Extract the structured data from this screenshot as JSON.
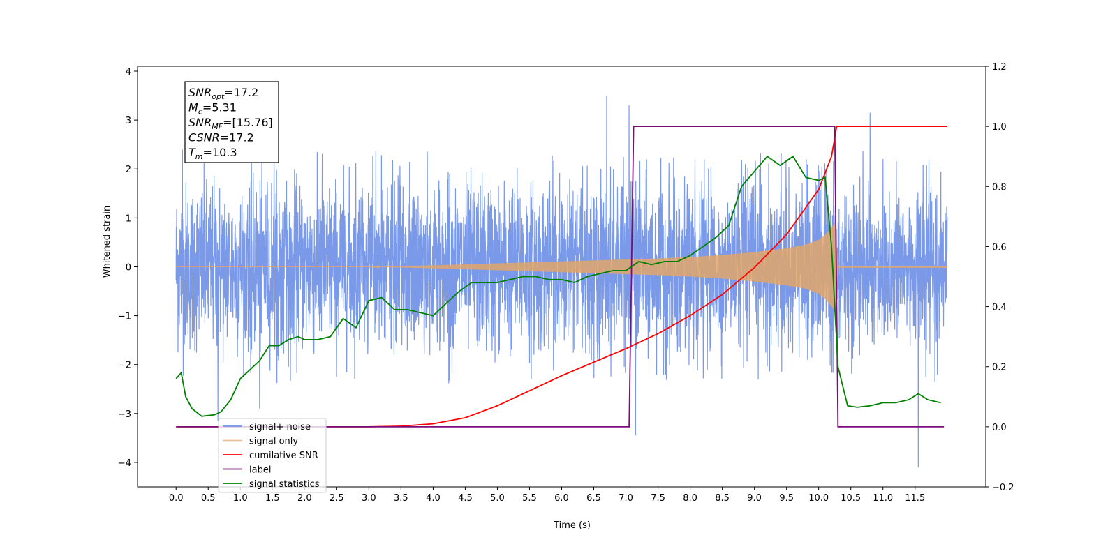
{
  "chart_data": {
    "type": "line",
    "title": "",
    "xlabel": "Time (s)",
    "ylabel": "Whitened strain",
    "ylabel_right": "",
    "xlim": [
      -0.6,
      12.6
    ],
    "ylim": [
      -4.5,
      4.1
    ],
    "ylim_right": [
      -0.2,
      1.2
    ],
    "x_ticks": [
      "0.0",
      "0.5",
      "1.0",
      "1.5",
      "2.0",
      "2.5",
      "3.0",
      "3.5",
      "4.0",
      "4.5",
      "5.0",
      "5.5",
      "6.0",
      "6.5",
      "7.0",
      "7.5",
      "8.0",
      "8.5",
      "9.0",
      "9.5",
      "10.0",
      "10.5",
      "11.0",
      "11.5"
    ],
    "y_ticks": [
      "−4",
      "−3",
      "−2",
      "−1",
      "0",
      "1",
      "2",
      "3",
      "4"
    ],
    "y_ticks_right": [
      "−0.2",
      "0.0",
      "0.2",
      "0.4",
      "0.6",
      "0.8",
      "1.0",
      "1.2"
    ],
    "grid": false,
    "legend_position": "lower-left",
    "info_box": {
      "lines": [
        {
          "sym": "SNR",
          "sub": "opt",
          "val": "=17.2"
        },
        {
          "sym": "M",
          "sub": "c",
          "val": "=5.31"
        },
        {
          "sym": "SNR",
          "sub": "MF",
          "val": "=[15.76]"
        },
        {
          "sym": "CSNR",
          "sub": "",
          "val": "=17.2"
        },
        {
          "sym": "T",
          "sub": "m",
          "val": "=10.3"
        }
      ]
    },
    "series": [
      {
        "name": "signal+ noise",
        "axis": "left",
        "color": "#7393e8",
        "x_range": [
          0,
          12
        ],
        "amplitude_std": 0.85,
        "peaks": [
          [
            0.1,
            2.4
          ],
          [
            0.65,
            -3.15
          ],
          [
            1.3,
            -2.9
          ],
          [
            6.7,
            3.5
          ],
          [
            7.05,
            3.3
          ],
          [
            7.15,
            -3.45
          ],
          [
            10.8,
            3.15
          ],
          [
            11.55,
            -4.1
          ]
        ]
      },
      {
        "name": "signal only",
        "axis": "left",
        "color": "#e2a66a",
        "x": [
          0.0,
          3.0,
          4.0,
          5.0,
          6.0,
          7.0,
          7.5,
          8.0,
          8.5,
          9.0,
          9.5,
          9.8,
          10.0,
          10.1,
          10.2,
          10.25,
          10.3,
          12.0
        ],
        "envelope": [
          0.0,
          0.0,
          0.03,
          0.07,
          0.11,
          0.15,
          0.17,
          0.2,
          0.24,
          0.3,
          0.38,
          0.45,
          0.55,
          0.65,
          0.8,
          0.9,
          0.02,
          0.02
        ]
      },
      {
        "name": "cumilative SNR",
        "axis": "right",
        "color": "#ff0000",
        "x": [
          0.0,
          3.0,
          3.5,
          4.0,
          4.5,
          5.0,
          5.5,
          6.0,
          6.5,
          7.0,
          7.5,
          8.0,
          8.5,
          9.0,
          9.5,
          10.0,
          10.2,
          10.28,
          10.3,
          12.0
        ],
        "values": [
          0.0,
          0.0,
          0.002,
          0.01,
          0.03,
          0.07,
          0.12,
          0.17,
          0.215,
          0.26,
          0.31,
          0.37,
          0.44,
          0.53,
          0.64,
          0.79,
          0.9,
          1.0,
          1.0,
          1.0
        ]
      },
      {
        "name": "label",
        "axis": "right",
        "color": "#7b0c7b",
        "x": [
          0.0,
          7.05,
          7.12,
          10.25,
          10.3,
          11.95
        ],
        "values": [
          0.0,
          0.0,
          1.0,
          1.0,
          0.0,
          0.0
        ]
      },
      {
        "name": "signal statistics",
        "axis": "right",
        "color": "#008000",
        "x": [
          0.0,
          0.08,
          0.15,
          0.25,
          0.4,
          0.6,
          0.7,
          0.85,
          1.0,
          1.1,
          1.2,
          1.3,
          1.45,
          1.6,
          1.75,
          1.9,
          2.0,
          2.2,
          2.4,
          2.6,
          2.8,
          3.0,
          3.2,
          3.4,
          3.6,
          3.8,
          4.0,
          4.2,
          4.4,
          4.6,
          4.8,
          5.0,
          5.2,
          5.4,
          5.6,
          5.8,
          6.0,
          6.2,
          6.4,
          6.6,
          6.8,
          7.0,
          7.2,
          7.4,
          7.6,
          7.8,
          8.0,
          8.2,
          8.4,
          8.6,
          8.8,
          9.0,
          9.2,
          9.4,
          9.6,
          9.8,
          10.0,
          10.1,
          10.2,
          10.3,
          10.45,
          10.6,
          10.8,
          11.0,
          11.2,
          11.4,
          11.55,
          11.7,
          11.9
        ],
        "values": [
          0.16,
          0.18,
          0.1,
          0.06,
          0.035,
          0.04,
          0.05,
          0.09,
          0.16,
          0.18,
          0.2,
          0.22,
          0.27,
          0.27,
          0.29,
          0.3,
          0.29,
          0.29,
          0.3,
          0.36,
          0.33,
          0.42,
          0.43,
          0.39,
          0.39,
          0.38,
          0.37,
          0.41,
          0.45,
          0.48,
          0.48,
          0.48,
          0.49,
          0.5,
          0.5,
          0.49,
          0.49,
          0.48,
          0.5,
          0.51,
          0.52,
          0.52,
          0.55,
          0.54,
          0.55,
          0.55,
          0.57,
          0.6,
          0.63,
          0.67,
          0.8,
          0.85,
          0.9,
          0.87,
          0.9,
          0.83,
          0.82,
          0.83,
          0.6,
          0.2,
          0.07,
          0.065,
          0.07,
          0.08,
          0.08,
          0.09,
          0.11,
          0.09,
          0.08
        ]
      }
    ]
  }
}
